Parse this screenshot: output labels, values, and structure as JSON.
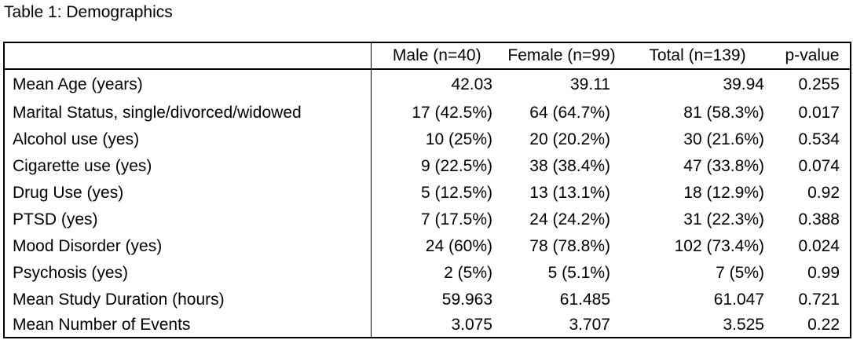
{
  "title": "Table 1: Demographics",
  "chart_data": {
    "type": "table",
    "title": "Table 1: Demographics",
    "columns": [
      "",
      "Male (n=40)",
      "Female (n=99)",
      "Total (n=139)",
      "p-value"
    ],
    "rows": [
      {
        "label": "Mean Age (years)",
        "male": "42.03",
        "female": "39.11",
        "total": "39.94",
        "p": "0.255"
      },
      {
        "label": "Marital Status, single/divorced/widowed",
        "male": "17 (42.5%)",
        "female": "64 (64.7%)",
        "total": "81 (58.3%)",
        "p": "0.017"
      },
      {
        "label": "Alcohol use (yes)",
        "male": "10 (25%)",
        "female": "20 (20.2%)",
        "total": "30 (21.6%)",
        "p": "0.534"
      },
      {
        "label": "Cigarette use (yes)",
        "male": "9 (22.5%)",
        "female": "38 (38.4%)",
        "total": "47 (33.8%)",
        "p": "0.074"
      },
      {
        "label": "Drug Use (yes)",
        "male": "5 (12.5%)",
        "female": "13 (13.1%)",
        "total": "18 (12.9%)",
        "p": "0.92"
      },
      {
        "label": "PTSD (yes)",
        "male": "7 (17.5%)",
        "female": "24 (24.2%)",
        "total": "31 (22.3%)",
        "p": "0.388"
      },
      {
        "label": "Mood Disorder (yes)",
        "male": "24 (60%)",
        "female": "78 (78.8%)",
        "total": "102 (73.4%)",
        "p": "0.024"
      },
      {
        "label": "Psychosis (yes)",
        "male": "2 (5%)",
        "female": "5 (5.1%)",
        "total": "7 (5%)",
        "p": "0.99"
      },
      {
        "label": "Mean Study Duration (hours)",
        "male": "59.963",
        "female": "61.485",
        "total": "61.047",
        "p": "0.721"
      },
      {
        "label": "Mean Number of Events",
        "male": "3.075",
        "female": "3.707",
        "total": "3.525",
        "p": "0.22"
      }
    ],
    "colors": {
      "text": "#000000",
      "border": "#000000",
      "background": "#ffffff"
    }
  }
}
